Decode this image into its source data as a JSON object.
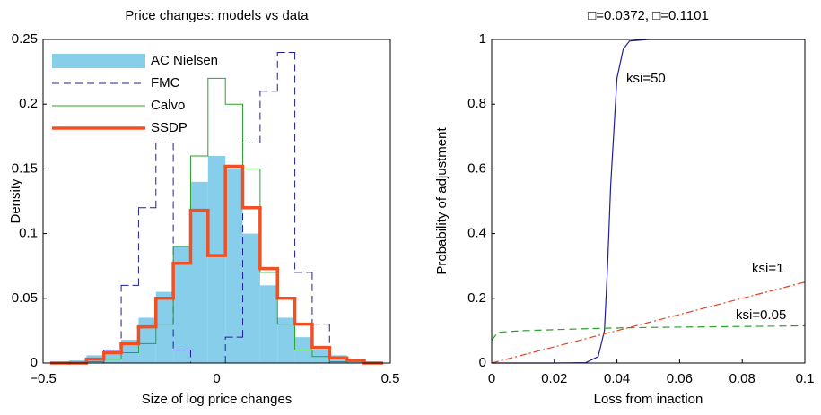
{
  "chart_data": [
    {
      "type": "histogram",
      "title": "Price changes: models vs data",
      "x_label": "Size of log price changes",
      "y_label": "Density",
      "bins": [
        -0.475,
        -0.425,
        -0.375,
        -0.325,
        -0.275,
        -0.225,
        -0.175,
        -0.125,
        -0.075,
        -0.025,
        0.025,
        0.075,
        0.125,
        0.175,
        0.225,
        0.275,
        0.325,
        0.375,
        0.425,
        0.475
      ],
      "series": [
        {
          "name": "AC Nielsen",
          "color": "#87ceeb",
          "style": "bar",
          "values": [
            0.001,
            0.002,
            0.006,
            0.01,
            0.018,
            0.035,
            0.055,
            0.09,
            0.14,
            0.16,
            0.15,
            0.1,
            0.06,
            0.035,
            0.02,
            0.01,
            0.006,
            0.003,
            0.001
          ]
        },
        {
          "name": "FMC",
          "color": "#1f1f9f",
          "style": "dashed",
          "values": [
            0,
            0,
            0,
            0.01,
            0.06,
            0.12,
            0.17,
            0.01,
            0,
            0,
            0.02,
            0.17,
            0.21,
            0.24,
            0.07,
            0.03,
            0,
            0,
            0
          ]
        },
        {
          "name": "Calvo",
          "color": "#2ca02c",
          "style": "solid",
          "values": [
            0,
            0,
            0.001,
            0.003,
            0.008,
            0.015,
            0.03,
            0.09,
            0.16,
            0.22,
            0.2,
            0.15,
            0.07,
            0.03,
            0.01,
            0.005,
            0.001,
            0,
            0
          ]
        },
        {
          "name": "SSDP",
          "color": "#f05024",
          "style": "thick",
          "values": [
            0,
            0,
            0.003,
            0.008,
            0.015,
            0.028,
            0.05,
            0.077,
            0.118,
            0.083,
            0.152,
            0.12,
            0.073,
            0.05,
            0.03,
            0.012,
            0.004,
            0.002,
            0
          ]
        }
      ],
      "xlim": [
        -0.5,
        0.5
      ],
      "xticks": [
        {
          "value": -0.5,
          "label": "−0.5"
        },
        0,
        0.5
      ],
      "ylim": [
        0,
        0.25
      ],
      "yticks": [
        0,
        0.05,
        0.1,
        0.15,
        0.2,
        0.25
      ]
    },
    {
      "type": "line",
      "title": "□=0.0372, □=0.1101",
      "x_label": "Loss from inaction",
      "y_label": "Probability of adjustment",
      "x": [
        0,
        0.002,
        0.01,
        0.02,
        0.03,
        0.034,
        0.036,
        0.037,
        0.038,
        0.04,
        0.042,
        0.044,
        0.05,
        0.06,
        0.08,
        0.1
      ],
      "series": [
        {
          "name": "ksi=50",
          "color": "#1f1f9f",
          "style": "solid",
          "values": [
            0,
            0,
            0,
            0,
            0.001,
            0.02,
            0.1,
            0.3,
            0.55,
            0.88,
            0.97,
            0.995,
            1,
            1,
            1,
            1
          ]
        },
        {
          "name": "ksi=1",
          "color": "#e8401c",
          "style": "dashdot",
          "values": [
            0,
            0.005,
            0.025,
            0.05,
            0.075,
            0.085,
            0.09,
            0.093,
            0.095,
            0.1,
            0.105,
            0.11,
            0.125,
            0.15,
            0.2,
            0.25
          ]
        },
        {
          "name": "ksi=0.05",
          "color": "#2ca02c",
          "style": "dashed",
          "values": [
            0.07,
            0.095,
            0.1,
            0.103,
            0.106,
            0.107,
            0.107,
            0.108,
            0.108,
            0.108,
            0.109,
            0.109,
            0.11,
            0.111,
            0.113,
            0.115
          ]
        }
      ],
      "xlim": [
        0,
        0.1
      ],
      "xticks": [
        0,
        0.02,
        0.04,
        0.06,
        0.08,
        0.1
      ],
      "ylim": [
        0,
        1
      ],
      "yticks": [
        0,
        0.2,
        0.4,
        0.6,
        0.8,
        1
      ]
    }
  ]
}
